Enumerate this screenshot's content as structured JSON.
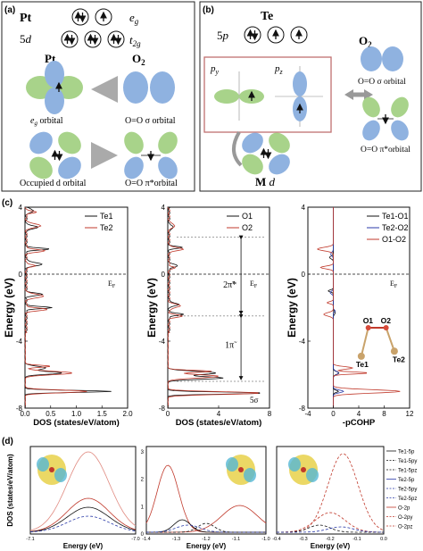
{
  "panel_a": {
    "label": "(a)",
    "metal": "Pt",
    "eg": "e",
    "eg_sub": "g",
    "d5": "5",
    "d5_d": "d",
    "t2g": "t",
    "t2g_sub": "2g",
    "pt_label": "Pt",
    "o2_label": "O",
    "o2_sub": "2",
    "eg_orbital": "e",
    "eg_orbital_sub": "g",
    "eg_orbital_word": " orbital",
    "sigma_orbital": "O=O σ orbital",
    "occupied_d": "Occupied d orbital",
    "pi_orbital": "O=O π*orbital",
    "colors": {
      "blue": "#8fb2e0",
      "green": "#a8d38a",
      "arrow": "#b7b7b7"
    }
  },
  "panel_b": {
    "label": "(b)",
    "te": "Te",
    "p5": "5",
    "p5_p": "p",
    "o2_label": "O",
    "o2_sub": "2",
    "py": "p",
    "py_sub": "y",
    "pz": "p",
    "pz_sub": "z",
    "sigma_orbital": "O=O σ orbital",
    "pi_orbital": "O=O π*orbital",
    "md": "M",
    "md_d": "d",
    "box_color": "#c07070"
  },
  "panel_c": {
    "label": "(c)",
    "ylabel": "Energy (eV)",
    "ef": "E",
    "ef_sub": "F",
    "charts": [
      {
        "type": "line",
        "xlabel": "DOS (states/eV/atom)",
        "xticks": [
          "0.0",
          "0.5",
          "1.0",
          "1.5",
          "2.0"
        ],
        "yticks": [
          "4",
          "0",
          "-4",
          "-8"
        ],
        "xlim": [
          0,
          2.0
        ],
        "ylim": [
          -8,
          4
        ],
        "series": [
          {
            "name": "Te1",
            "color": "#111111",
            "peaks": [
              [
                -7.0,
                1.68
              ],
              [
                -5.9,
                0.72
              ],
              [
                -5.6,
                0.4
              ],
              [
                -2.0,
                0.5
              ],
              [
                -1.2,
                0.3
              ],
              [
                0.6,
                0.3
              ],
              [
                1.5,
                0.45
              ],
              [
                2.8,
                0.25
              ],
              [
                3.8,
                0.15
              ]
            ]
          },
          {
            "name": "Te2",
            "color": "#c0392b",
            "peaks": [
              [
                -7.0,
                1.2
              ],
              [
                -5.9,
                0.92
              ],
              [
                -5.5,
                0.5
              ],
              [
                -2.1,
                0.4
              ],
              [
                -1.3,
                0.35
              ],
              [
                0.5,
                0.2
              ],
              [
                1.4,
                0.35
              ],
              [
                2.9,
                0.3
              ],
              [
                3.7,
                0.2
              ]
            ]
          }
        ]
      },
      {
        "type": "line",
        "xlabel": "DOS (states/eV/atom)",
        "xticks": [
          "0",
          "4",
          "8"
        ],
        "yticks": [
          "4",
          "0",
          "-4",
          "-8"
        ],
        "xlim": [
          0,
          8
        ],
        "ylim": [
          -8,
          4
        ],
        "annotations": [
          "2π̃*",
          "1π̃",
          "5σ"
        ],
        "series": [
          {
            "name": "O1",
            "color": "#111111",
            "peaks": [
              [
                -7.1,
                7.6
              ],
              [
                -6.2,
                4.3
              ],
              [
                -5.9,
                3.8
              ],
              [
                -2.4,
                1.2
              ],
              [
                -1.8,
                0.8
              ],
              [
                0.5,
                0.6
              ],
              [
                1.6,
                1.0
              ],
              [
                2.8,
                0.4
              ]
            ]
          },
          {
            "name": "O2",
            "color": "#c0392b",
            "peaks": [
              [
                -7.1,
                7.3
              ],
              [
                -6.1,
                4.0
              ],
              [
                -5.8,
                3.4
              ],
              [
                -2.5,
                1.0
              ],
              [
                -1.9,
                0.9
              ],
              [
                0.4,
                0.5
              ],
              [
                1.5,
                1.2
              ],
              [
                2.9,
                0.5
              ]
            ]
          }
        ]
      },
      {
        "type": "line",
        "xlabel": "-pCOHP",
        "xticks": [
          "-4",
          "0",
          "4",
          "8",
          "12"
        ],
        "yticks": [
          "4",
          "0",
          "-4",
          "-8"
        ],
        "xlim": [
          -4,
          12
        ],
        "ylim": [
          -8,
          4
        ],
        "structure_labels": [
          "O1",
          "O2",
          "Te1",
          "Te2"
        ],
        "series": [
          {
            "name": "Te1-O1",
            "color": "#111111",
            "peaks": [
              [
                -7.0,
                0.8
              ],
              [
                -5.9,
                0.9
              ],
              [
                -2.3,
                0.3
              ],
              [
                -1.0,
                -0.8
              ],
              [
                1.0,
                -0.6
              ]
            ]
          },
          {
            "name": "Te2-O2",
            "color": "#2a3aa8",
            "peaks": [
              [
                -7.0,
                1.6
              ],
              [
                -5.9,
                0.8
              ],
              [
                -2.2,
                0.3
              ],
              [
                -1.1,
                -0.5
              ],
              [
                1.2,
                -0.4
              ]
            ]
          },
          {
            "name": "O1-O2",
            "color": "#c0392b",
            "peaks": [
              [
                -7.0,
                10.5
              ],
              [
                -5.9,
                5.5
              ],
              [
                -5.6,
                3.0
              ],
              [
                -2.4,
                -1.5
              ],
              [
                -1.7,
                -1.0
              ],
              [
                0.4,
                -2.0
              ],
              [
                1.5,
                -2.5
              ]
            ]
          }
        ]
      }
    ]
  },
  "panel_d": {
    "label": "(d)",
    "ylabel": "DOS (states/eV/atom)",
    "xlabel": "Energy (eV)",
    "legend": [
      "Te1-5p",
      "Te1-5py",
      "Te1-5pz",
      "Te2-5p",
      "Te2-5py",
      "Te2-5pz",
      "O-2p",
      "O-2py",
      "O-2pz"
    ],
    "charts": [
      {
        "xticks": [
          "-7.1",
          "-7.0"
        ],
        "yticks": [],
        "note": "left"
      },
      {
        "xticks": [
          "-1.4",
          "-1.3",
          "-1.2",
          "-1.1",
          "-1.0"
        ],
        "yticks": [
          "0",
          "1",
          "2",
          "3"
        ]
      },
      {
        "xticks": [
          "-0.4",
          "-0.3",
          "-0.2",
          "-0.1",
          "0.0"
        ],
        "yticks": []
      }
    ]
  }
}
